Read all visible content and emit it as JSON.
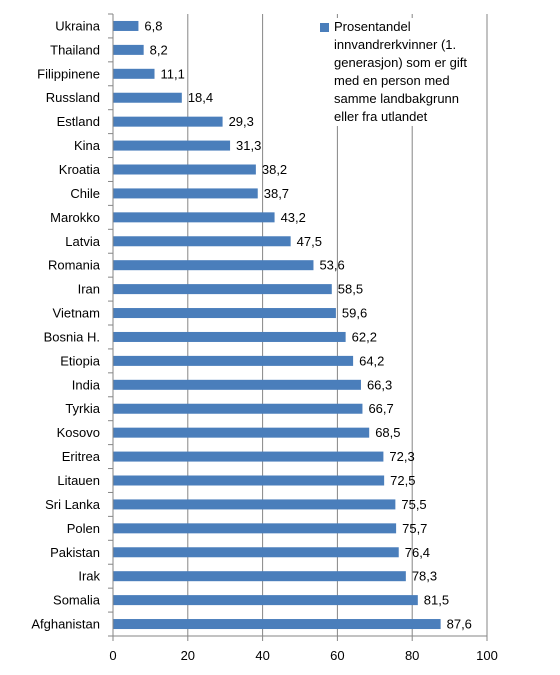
{
  "chart_data": {
    "type": "bar",
    "orientation": "horizontal",
    "categories": [
      "Ukraina",
      "Thailand",
      "Filippinene",
      "Russland",
      "Estland",
      "Kina",
      "Kroatia",
      "Chile",
      "Marokko",
      "Latvia",
      "Romania",
      "Iran",
      "Vietnam",
      "Bosnia H.",
      "Etiopia",
      "India",
      "Tyrkia",
      "Kosovo",
      "Eritrea",
      "Litauen",
      "Sri Lanka",
      "Polen",
      "Pakistan",
      "Irak",
      "Somalia",
      "Afghanistan"
    ],
    "series": [
      {
        "name": "Prosentandel innvandrerkvinner (1. generasjon) som er gift med en person med samme landbakgrunn eller fra utlandet",
        "values": [
          6.8,
          8.2,
          11.1,
          18.4,
          29.3,
          31.3,
          38.2,
          38.7,
          43.2,
          47.5,
          53.6,
          58.5,
          59.6,
          62.2,
          64.2,
          66.3,
          66.7,
          68.5,
          72.3,
          72.5,
          75.5,
          75.7,
          76.4,
          78.3,
          81.5,
          87.6
        ],
        "value_labels": [
          "6,8",
          "8,2",
          "11,1",
          "18,4",
          "29,3",
          "31,3",
          "38,2",
          "38,7",
          "43,2",
          "47,5",
          "53,6",
          "58,5",
          "59,6",
          "62,2",
          "64,2",
          "66,3",
          "66,7",
          "68,5",
          "72,3",
          "72,5",
          "75,5",
          "75,7",
          "76,4",
          "78,3",
          "81,5",
          "87,6"
        ]
      }
    ],
    "xlim": [
      0,
      100
    ],
    "xticks": [
      0,
      20,
      40,
      60,
      80,
      100
    ],
    "xtick_labels": [
      "0",
      "20",
      "40",
      "60",
      "80",
      "100"
    ],
    "grid": "vertical",
    "legend_position": "top-right",
    "bar_color": "#4a7ebb",
    "grid_color": "#868686"
  }
}
